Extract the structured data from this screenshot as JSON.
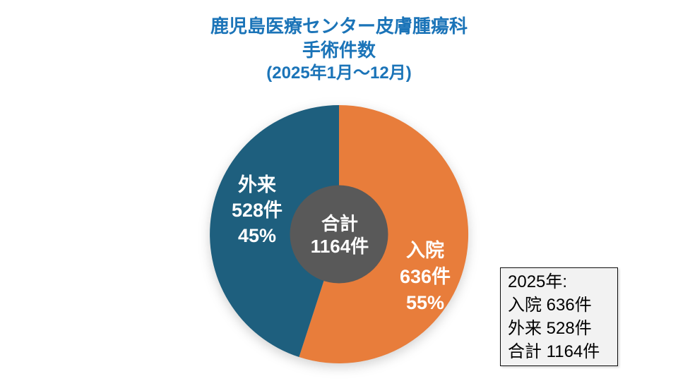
{
  "title": {
    "line1": "鹿児島医療センター皮膚腫瘍科",
    "line2": "手術件数",
    "line3": "(2025年1月～12月)"
  },
  "colors": {
    "title_text": "#1B74B8",
    "inpatient_slice": "#E87D3B",
    "outpatient_slice": "#1E5F7E",
    "center_circle": "#595959",
    "slice_label_text": "#FFFFFF",
    "legend_background": "#F2F2F2",
    "legend_border": "#0D0D0D"
  },
  "chart_data": {
    "type": "pie",
    "title": "鹿児島医療センター皮膚腫瘍科 手術件数(2025年1月～12月)",
    "unit": "件",
    "start_angle_deg": 0,
    "direction": "clockwise",
    "slices": [
      {
        "key": "inpatient",
        "label": "入院",
        "value": 636,
        "percent": 55,
        "color": "#E87D3B"
      },
      {
        "key": "outpatient",
        "label": "外来",
        "value": 528,
        "percent": 45,
        "color": "#1E5F7E"
      }
    ],
    "total_label": "合計",
    "total_value": 1164,
    "inner_circle": {
      "radius_ratio": 0.38,
      "color": "#595959"
    },
    "legend_position": "bottom-right"
  },
  "slice_labels": {
    "inpatient": {
      "name": "入院",
      "count": "636件",
      "percent": "55%"
    },
    "outpatient": {
      "name": "外来",
      "count": "528件",
      "percent": "45%"
    },
    "center": {
      "line1": "合計",
      "line2": "1164件"
    }
  },
  "legend_box": {
    "line1": "2025年:",
    "line2": "入院 636件",
    "line3": "外来 528件",
    "line4": "合計 1164件"
  }
}
